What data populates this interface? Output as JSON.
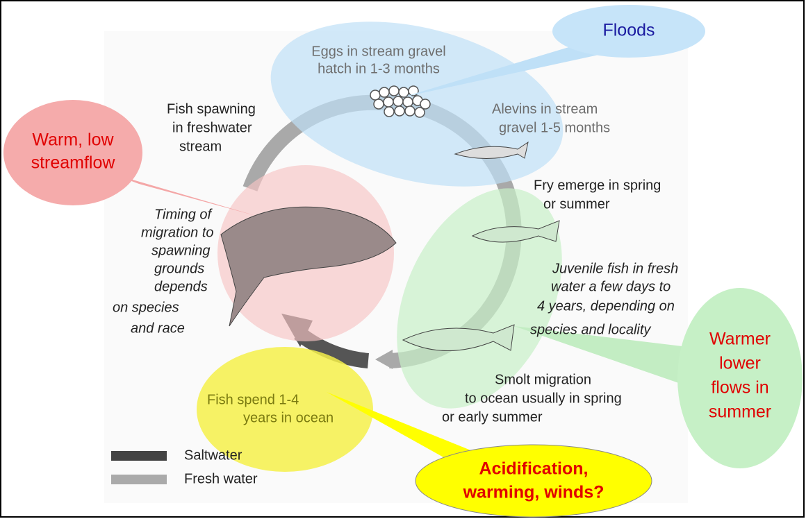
{
  "stages": [
    {
      "lines": [
        "Eggs in stream gravel",
        "hatch in 1-3 months"
      ]
    },
    {
      "lines": [
        "Alevins in stream",
        "gravel 1-5 months"
      ]
    },
    {
      "lines": [
        "Fry emerge in spring",
        "or summer"
      ]
    },
    {
      "lines": [
        "Juvenile fish in fresh",
        "water a few days to",
        "4 years, depending on",
        "species and locality"
      ]
    },
    {
      "lines": [
        "Smolt migration",
        "to ocean usually in spring",
        "or early summer"
      ]
    },
    {
      "lines": [
        "Fish spend 1-4",
        "years in ocean"
      ]
    },
    {
      "lines": [
        "Timing of",
        "migration to",
        "spawning",
        "grounds",
        "depends",
        "on species",
        "and race"
      ]
    },
    {
      "lines": [
        "Fish spawning",
        "in freshwater",
        "stream"
      ]
    }
  ],
  "callouts": [
    {
      "lines": [
        "Floods"
      ]
    },
    {
      "lines": [
        "Warm, low",
        "streamflow"
      ]
    },
    {
      "lines": [
        "Warmer",
        "lower",
        "flows in",
        "summer"
      ]
    },
    {
      "lines": [
        "Acidification,",
        "warming, winds?"
      ]
    }
  ],
  "legend": [
    {
      "label": "Saltwater"
    },
    {
      "label": "Fresh water"
    }
  ]
}
